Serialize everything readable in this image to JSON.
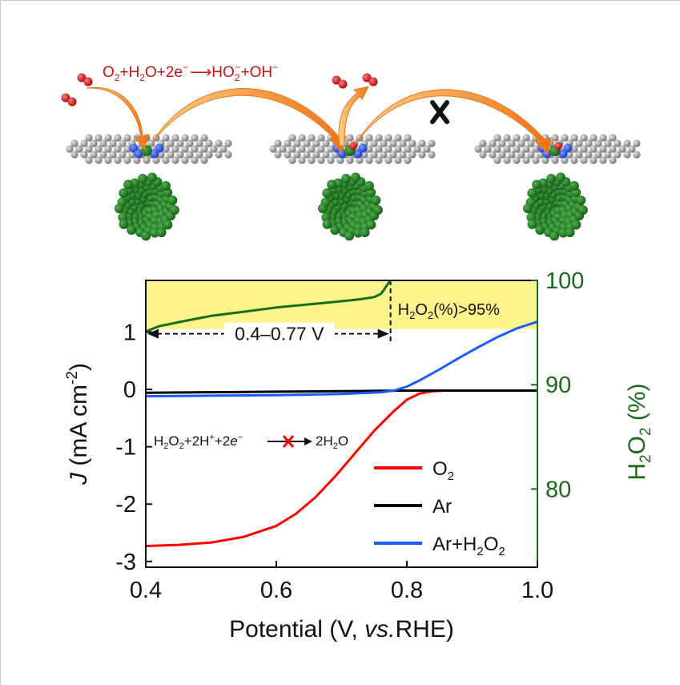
{
  "reaction": {
    "lhs": [
      "O",
      "2",
      "+H",
      "2",
      "O+2e",
      "−"
    ],
    "arrow": "⟶",
    "rhs": [
      "HO",
      "2",
      "−",
      "+OH",
      "−"
    ]
  },
  "chart_data": {
    "type": "line",
    "xlabel": [
      "Potential (V, ",
      "vs.",
      "RHE)"
    ],
    "ylabel": [
      "J",
      " (mA cm",
      "-2",
      ")"
    ],
    "y2label": [
      "H",
      "2",
      "O",
      "2",
      " (%)"
    ],
    "xlim": [
      0.4,
      1.0
    ],
    "ylim": [
      -3.1,
      1.9
    ],
    "y2lim": [
      72.5,
      100
    ],
    "xticks": [
      "0.4",
      "0.6",
      "0.8",
      "1.0"
    ],
    "xtick_values": [
      0.4,
      0.6,
      0.8,
      1.0
    ],
    "yticks": [
      "1",
      "0",
      "-1",
      "-2",
      "-3"
    ],
    "ytick_values": [
      1,
      0,
      -1,
      -2,
      -3
    ],
    "y2ticks": [
      "100",
      "90",
      "80"
    ],
    "y2tick_values": [
      100,
      90,
      80
    ],
    "highlight": {
      "y_from": 1.05,
      "label": [
        "H",
        "2",
        "O",
        "2",
        "(%)>95%"
      ],
      "divider_x": 0.775,
      "range_label": "0.4–0.77 V"
    },
    "inhibited_reaction": [
      "H",
      "2",
      "O",
      "2",
      "+2H",
      "+",
      "+2",
      "e",
      "−",
      "2H",
      "2",
      "O"
    ],
    "legend_items": [
      [
        "O",
        "2"
      ],
      [
        "Ar"
      ],
      [
        "Ar+H",
        "2",
        "O",
        "2"
      ]
    ],
    "legend_position": "bottom-right",
    "series": [
      {
        "name": "O2",
        "color": "#ff0000",
        "axis": "left",
        "x": [
          0.4,
          0.45,
          0.5,
          0.55,
          0.6,
          0.63,
          0.66,
          0.69,
          0.72,
          0.75,
          0.78,
          0.8,
          0.82,
          0.84,
          0.86,
          0.88,
          0.9,
          0.95,
          1.0
        ],
        "y": [
          -2.73,
          -2.71,
          -2.67,
          -2.57,
          -2.38,
          -2.17,
          -1.88,
          -1.52,
          -1.12,
          -0.72,
          -0.38,
          -0.18,
          -0.07,
          -0.03,
          -0.02,
          -0.02,
          -0.02,
          -0.02,
          -0.02
        ]
      },
      {
        "name": "Ar",
        "color": "#000000",
        "axis": "left",
        "x": [
          0.4,
          0.5,
          0.6,
          0.7,
          0.8,
          0.9,
          1.0
        ],
        "y": [
          -0.06,
          -0.05,
          -0.04,
          -0.03,
          -0.02,
          -0.02,
          -0.02
        ]
      },
      {
        "name": "Ar+H2O2",
        "color": "#1a5cff",
        "axis": "left",
        "x": [
          0.4,
          0.5,
          0.6,
          0.7,
          0.76,
          0.78,
          0.8,
          0.82,
          0.85,
          0.88,
          0.91,
          0.94,
          0.97,
          1.0
        ],
        "y": [
          -0.12,
          -0.11,
          -0.1,
          -0.08,
          -0.05,
          -0.02,
          0.05,
          0.16,
          0.35,
          0.55,
          0.74,
          0.92,
          1.07,
          1.18
        ]
      },
      {
        "name": "H2O2 (%)",
        "color": "#1b6b1b",
        "axis": "right",
        "x": [
          0.4,
          0.42,
          0.45,
          0.5,
          0.55,
          0.6,
          0.65,
          0.7,
          0.73,
          0.75,
          0.76,
          0.765,
          0.77,
          0.775
        ],
        "y": [
          95.1,
          95.6,
          96.0,
          96.6,
          97.0,
          97.4,
          97.7,
          98.0,
          98.2,
          98.4,
          98.7,
          99.1,
          99.6,
          100
        ]
      }
    ]
  },
  "colors": {
    "green": "#1b6b1b",
    "red": "#ff0000",
    "blue": "#1a5cff",
    "orange": "#f07c1e",
    "highlight": "#fbf58c"
  }
}
